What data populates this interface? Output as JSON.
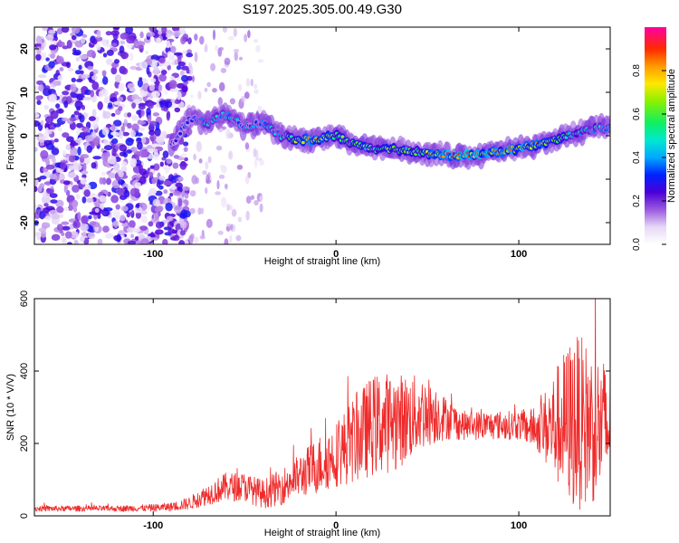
{
  "title": "S197.2025.305.00.49.G30",
  "chart_data": [
    {
      "type": "heatmap",
      "name": "spectrogram",
      "xlabel": "Height of straight line (km)",
      "ylabel": "Frequency (Hz)",
      "xlim": [
        -165,
        150
      ],
      "ylim": [
        -25,
        25
      ],
      "xticks": [
        -100,
        0,
        100
      ],
      "xtick_labels": [
        "-100",
        "0",
        "100"
      ],
      "yticks": [
        -20,
        -10,
        0,
        10,
        20
      ],
      "ytick_labels": [
        "-20",
        "-10",
        "0",
        "10",
        "20"
      ],
      "colorbar": {
        "label": "Normalized spectral amplitude",
        "range": [
          0,
          1
        ],
        "ticks": [
          0.0,
          0.2,
          0.4,
          0.6,
          0.8
        ],
        "tick_labels": [
          "0.0",
          "0.2",
          "0.4",
          "0.6",
          "0.8"
        ]
      },
      "ridge": {
        "x": [
          -90,
          -80,
          -70,
          -60,
          -50,
          -40,
          -30,
          -20,
          -10,
          0,
          10,
          20,
          30,
          40,
          50,
          60,
          70,
          80,
          90,
          100,
          110,
          120,
          130,
          140,
          150
        ],
        "freq": [
          -2,
          4,
          3,
          5,
          2,
          3,
          0,
          -1,
          -1,
          0,
          -2,
          -3,
          -3,
          -3.5,
          -4,
          -4.5,
          -4.5,
          -4.5,
          -3.5,
          -3,
          -2,
          -1,
          0.5,
          1.5,
          2
        ],
        "amp": [
          0.3,
          0.4,
          0.45,
          0.5,
          0.4,
          0.45,
          0.5,
          0.8,
          0.85,
          0.7,
          0.6,
          0.65,
          0.7,
          0.6,
          0.75,
          0.95,
          1.0,
          0.95,
          0.85,
          0.9,
          0.8,
          0.7,
          0.55,
          0.5,
          0.45
        ]
      }
    },
    {
      "type": "line",
      "name": "snr",
      "xlabel": "Height of straight line (km)",
      "ylabel": "SNR (10 * V/V)",
      "xlim": [
        -165,
        150
      ],
      "ylim": [
        0,
        600
      ],
      "xticks": [
        -100,
        0,
        100
      ],
      "xtick_labels": [
        "-100",
        "0",
        "100"
      ],
      "yticks": [
        0,
        200,
        400,
        600
      ],
      "ytick_labels": [
        "0",
        "200",
        "400",
        "600"
      ],
      "series": [
        {
          "name": "SNR",
          "color": "#ee2a2a",
          "x": [
            -165,
            -140,
            -120,
            -100,
            -90,
            -80,
            -70,
            -60,
            -50,
            -40,
            -30,
            -20,
            -10,
            0,
            10,
            20,
            30,
            40,
            50,
            60,
            70,
            80,
            90,
            100,
            110,
            120,
            130,
            140,
            150
          ],
          "mean": [
            20,
            20,
            20,
            22,
            25,
            35,
            60,
            80,
            80,
            60,
            80,
            110,
            140,
            170,
            210,
            250,
            260,
            270,
            290,
            270,
            250,
            250,
            250,
            250,
            240,
            250,
            260,
            250,
            240
          ],
          "spread": [
            8,
            8,
            8,
            10,
            12,
            18,
            30,
            40,
            40,
            40,
            50,
            60,
            80,
            90,
            120,
            140,
            140,
            120,
            100,
            60,
            40,
            40,
            40,
            40,
            60,
            160,
            250,
            220,
            180
          ]
        }
      ]
    }
  ]
}
